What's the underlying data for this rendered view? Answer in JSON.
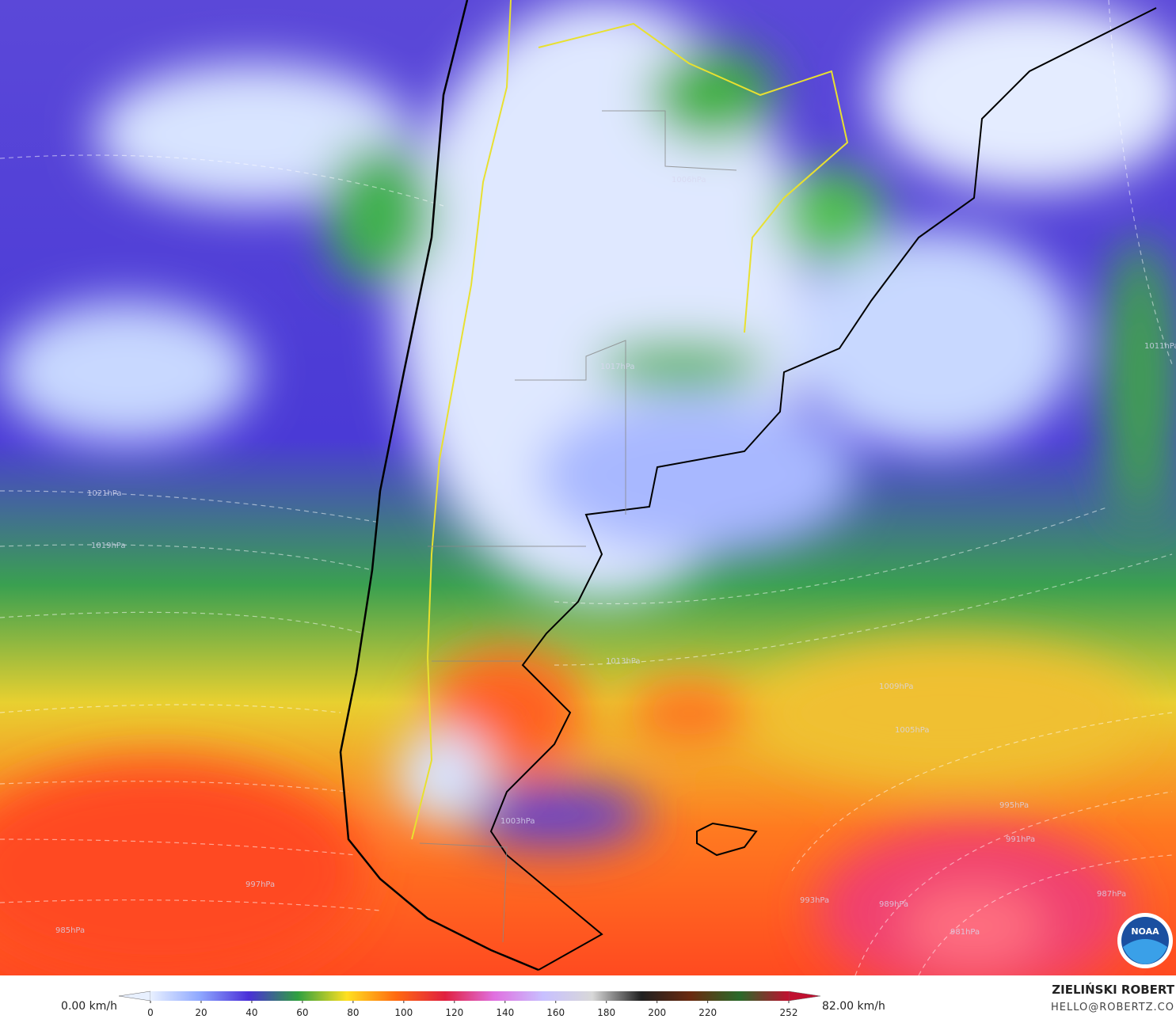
{
  "map": {
    "pressure_labels": [
      "1021hPa",
      "1019hPa",
      "1017hPa",
      "1013hPa",
      "1011hPa",
      "1009hPa",
      "1006hPa",
      "1005hPa",
      "1003hPa",
      "997hPa",
      "995hPa",
      "993hPa",
      "991hPa",
      "989hPa",
      "987hPa",
      "985hPa",
      "981hPa"
    ],
    "logo_text": "NOAA"
  },
  "colorbar": {
    "min_label": "0.00 km/h",
    "max_label": "82.00 km/h",
    "range": [
      0,
      252
    ],
    "ticks": [
      0,
      20,
      40,
      60,
      80,
      100,
      120,
      140,
      160,
      180,
      200,
      220,
      252
    ],
    "colors": [
      "#e8f0ff",
      "#8fa8ff",
      "#4a2fd8",
      "#2fa040",
      "#ffe020",
      "#ff6a10",
      "#e02040",
      "#e070e0",
      "#c8c0ff",
      "#d8d8d8",
      "#202020",
      "#6a2a10",
      "#2a6a2a",
      "#c01030"
    ]
  },
  "credits": {
    "author": "ZIELIŃSKI ROBERT",
    "email": "HELLO@ROBERTZ.CO"
  }
}
